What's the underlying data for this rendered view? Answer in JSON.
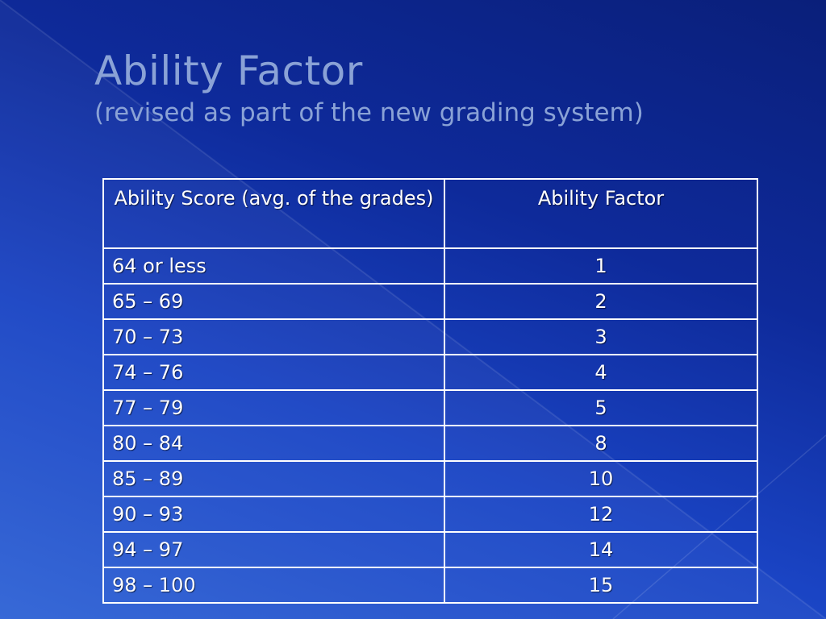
{
  "slide": {
    "title": "Ability Factor",
    "subtitle": "(revised as part of the new grading system)"
  },
  "table": {
    "headers": [
      "Ability Score (avg. of the grades)",
      "Ability Factor"
    ],
    "rows": [
      {
        "score": "64 or less",
        "factor": "1"
      },
      {
        "score": "65 – 69",
        "factor": "2"
      },
      {
        "score": "70 – 73",
        "factor": "3"
      },
      {
        "score": "74 – 76",
        "factor": "4"
      },
      {
        "score": "77 – 79",
        "factor": "5"
      },
      {
        "score": "80 – 84",
        "factor": "8"
      },
      {
        "score": "85 – 89",
        "factor": "10"
      },
      {
        "score": "90 – 93",
        "factor": "12"
      },
      {
        "score": "94 – 97",
        "factor": "14"
      },
      {
        "score": "98 – 100",
        "factor": "15"
      }
    ]
  },
  "colors": {
    "background_dark": "#0a1f7a",
    "background_light": "#2f63d6",
    "title_text": "#8aa2d6",
    "table_text": "#ffffff",
    "table_border": "#ffffff"
  }
}
